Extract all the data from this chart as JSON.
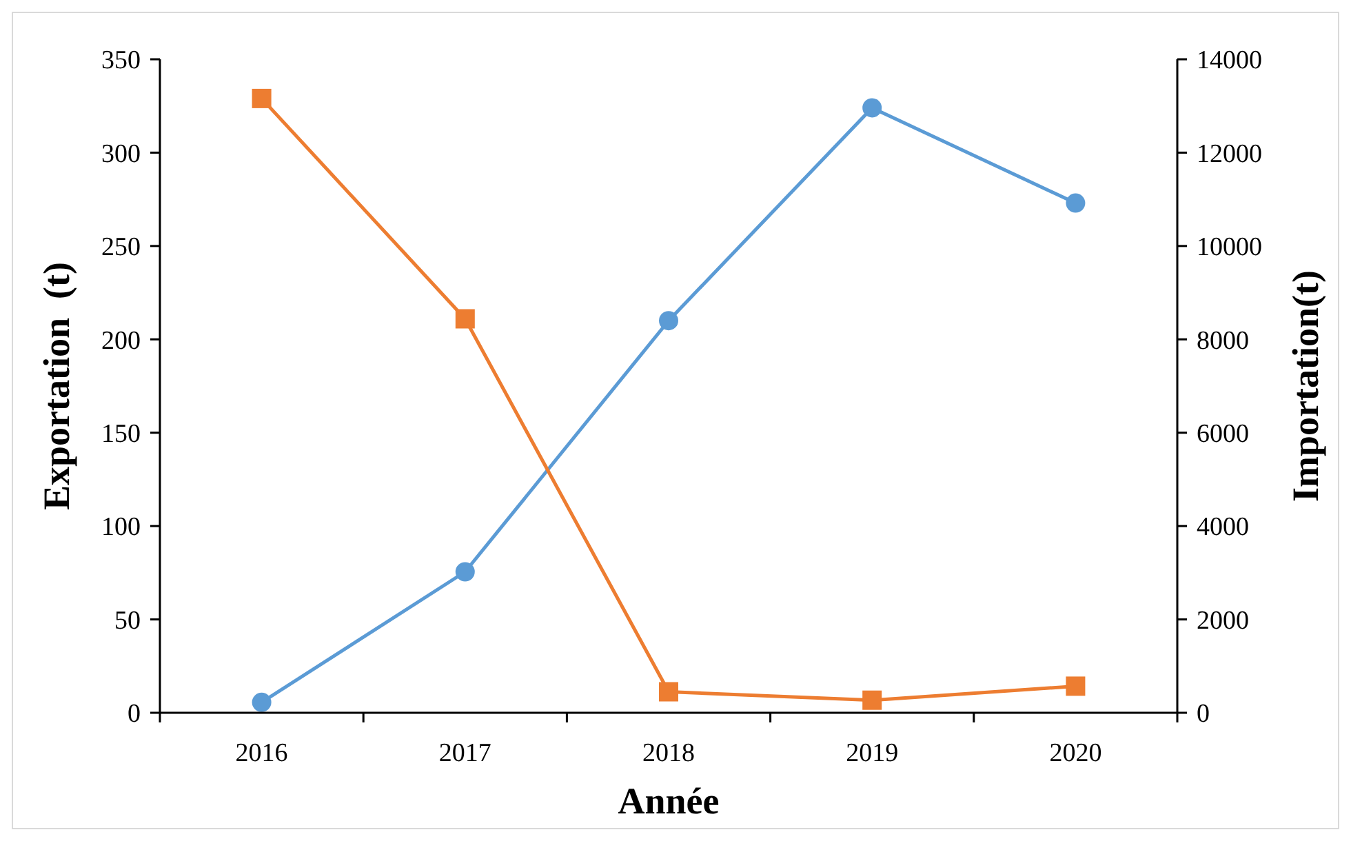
{
  "chart_data": {
    "type": "line",
    "xlabel": "Année",
    "ylabel": "Exportation  (t)",
    "y2label": "Importation(t)",
    "categories": [
      "2016",
      "2017",
      "2018",
      "2019",
      "2020"
    ],
    "series": [
      {
        "color": "#5b9bd5",
        "marker": "circle",
        "values": [
          5.6,
          75.5,
          210,
          324,
          273
        ]
      },
      {
        "color": "#ed7d31",
        "marker": "square",
        "axis": "y2",
        "values": [
          13160,
          8440,
          450,
          270,
          570
        ]
      }
    ],
    "ylim": [
      0,
      350
    ],
    "yticks": [
      0,
      50,
      100,
      150,
      200,
      250,
      300,
      350
    ],
    "y2lim": [
      0,
      14000
    ],
    "y2ticks": [
      0,
      2000,
      4000,
      6000,
      8000,
      10000,
      12000,
      14000
    ],
    "grid": false,
    "line_style": "solid"
  }
}
